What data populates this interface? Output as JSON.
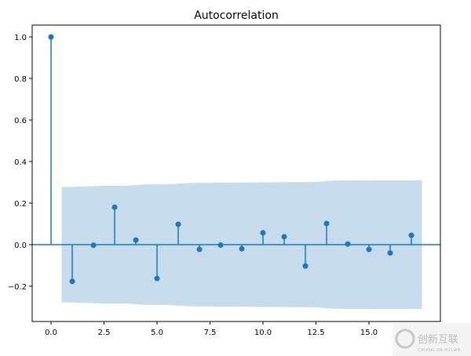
{
  "chart_data": {
    "type": "stem",
    "title": "Autocorrelation",
    "xlabel": "",
    "ylabel": "",
    "xlim": [
      -0.89,
      18.37
    ],
    "ylim": [
      -0.37,
      1.057
    ],
    "x_ticks": [
      0.0,
      2.5,
      5.0,
      7.5,
      10.0,
      12.5,
      15.0
    ],
    "x_tick_labels": [
      "0.0",
      "2.5",
      "5.0",
      "7.5",
      "10.0",
      "12.5",
      "15.0"
    ],
    "y_ticks": [
      -0.2,
      0.0,
      0.2,
      0.4,
      0.6,
      0.8,
      1.0
    ],
    "y_tick_labels": [
      "−0.2",
      "0.0",
      "0.2",
      "0.4",
      "0.6",
      "0.8",
      "1.0"
    ],
    "grid": false,
    "lags": [
      0,
      1,
      2,
      3,
      4,
      5,
      6,
      7,
      8,
      9,
      10,
      11,
      12,
      13,
      14,
      15,
      16,
      17
    ],
    "values": [
      1.0,
      -0.177,
      -0.003,
      0.18,
      0.022,
      -0.163,
      0.098,
      -0.023,
      -0.002,
      -0.02,
      0.057,
      0.038,
      -0.103,
      0.102,
      0.003,
      -0.023,
      -0.04,
      0.045
    ],
    "confidence_band": {
      "x": [
        0.5,
        2.5,
        3.5,
        4.5,
        5.5,
        6.5,
        10.5,
        12.5,
        13.5,
        17.5
      ],
      "upper": [
        0.277,
        0.283,
        0.283,
        0.29,
        0.29,
        0.297,
        0.3,
        0.302,
        0.309,
        0.31
      ]
    },
    "colors": {
      "stem": "#1f77b4",
      "band": "#c6dbec"
    }
  },
  "watermark": {
    "text": "创新互联",
    "subtext": "CHUANG XIN HU LIAN"
  }
}
